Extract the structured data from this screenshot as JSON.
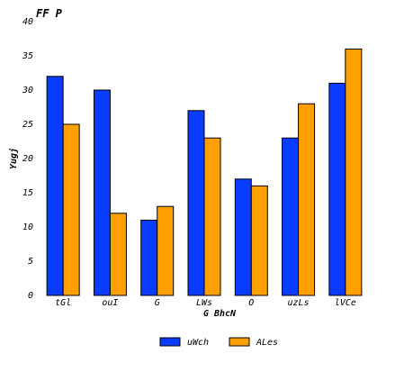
{
  "chart_data": {
    "type": "bar",
    "title": "FF P",
    "xlabel": "G BhcN",
    "ylabel": "Yugj",
    "categories": [
      "tGl",
      "ouI",
      "G",
      "LWs",
      "O",
      "uzLs",
      "lVCe"
    ],
    "series": [
      {
        "name": "uWch",
        "color": "#0a3cff",
        "values": [
          32,
          30,
          11,
          27,
          17,
          23,
          31
        ]
      },
      {
        "name": "ALes",
        "color": "#ffa000",
        "values": [
          25,
          12,
          13,
          23,
          16,
          28,
          36
        ]
      }
    ],
    "ylim": [
      0,
      40
    ],
    "yticks": [
      0,
      5,
      10,
      15,
      20,
      25,
      30,
      35,
      40
    ],
    "grid": false,
    "legend_position": "bottom-center"
  }
}
